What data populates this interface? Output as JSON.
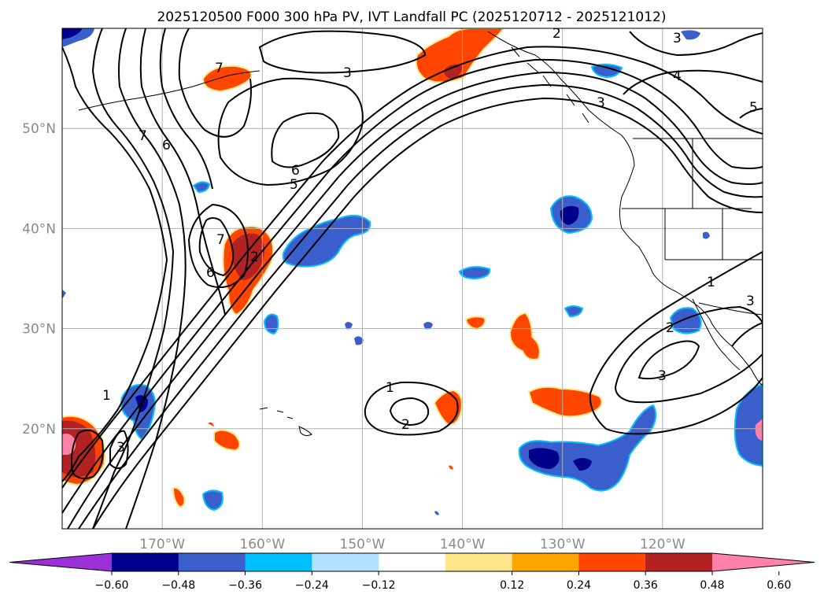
{
  "title": "2025120500 F000 300 hPa PV, IVT Landfall PC (2025120712 - 2025121012)",
  "map": {
    "lon_ticks": [
      {
        "lon": -170,
        "label": "170°W"
      },
      {
        "lon": -160,
        "label": "160°W"
      },
      {
        "lon": -150,
        "label": "150°W"
      },
      {
        "lon": -140,
        "label": "140°W"
      },
      {
        "lon": -130,
        "label": "130°W"
      },
      {
        "lon": -120,
        "label": "120°W"
      }
    ],
    "lat_ticks": [
      {
        "lat": 50,
        "label": "50°N"
      },
      {
        "lat": 40,
        "label": "40°N"
      },
      {
        "lat": 30,
        "label": "30°N"
      },
      {
        "lat": 20,
        "label": "20°N"
      }
    ],
    "extent": {
      "lon_min": -180,
      "lon_max": -110,
      "lat_min": 10,
      "lat_max": 60
    },
    "gridlines": true,
    "contour_labels": [
      "1",
      "2",
      "3",
      "4",
      "5",
      "6",
      "7"
    ]
  },
  "colorbar": {
    "ticks": [
      "−0.60",
      "−0.48",
      "−0.36",
      "−0.24",
      "−0.12",
      "0.12",
      "0.24",
      "0.36",
      "0.48",
      "0.60"
    ],
    "colors": [
      "#9b30d9",
      "#00008b",
      "#3a5fcd",
      "#00bfff",
      "#b0e2ff",
      "#ffffff",
      "#fde68a",
      "#ffa500",
      "#ff4500",
      "#b22222",
      "#ff82ab"
    ],
    "extend": "both"
  }
}
